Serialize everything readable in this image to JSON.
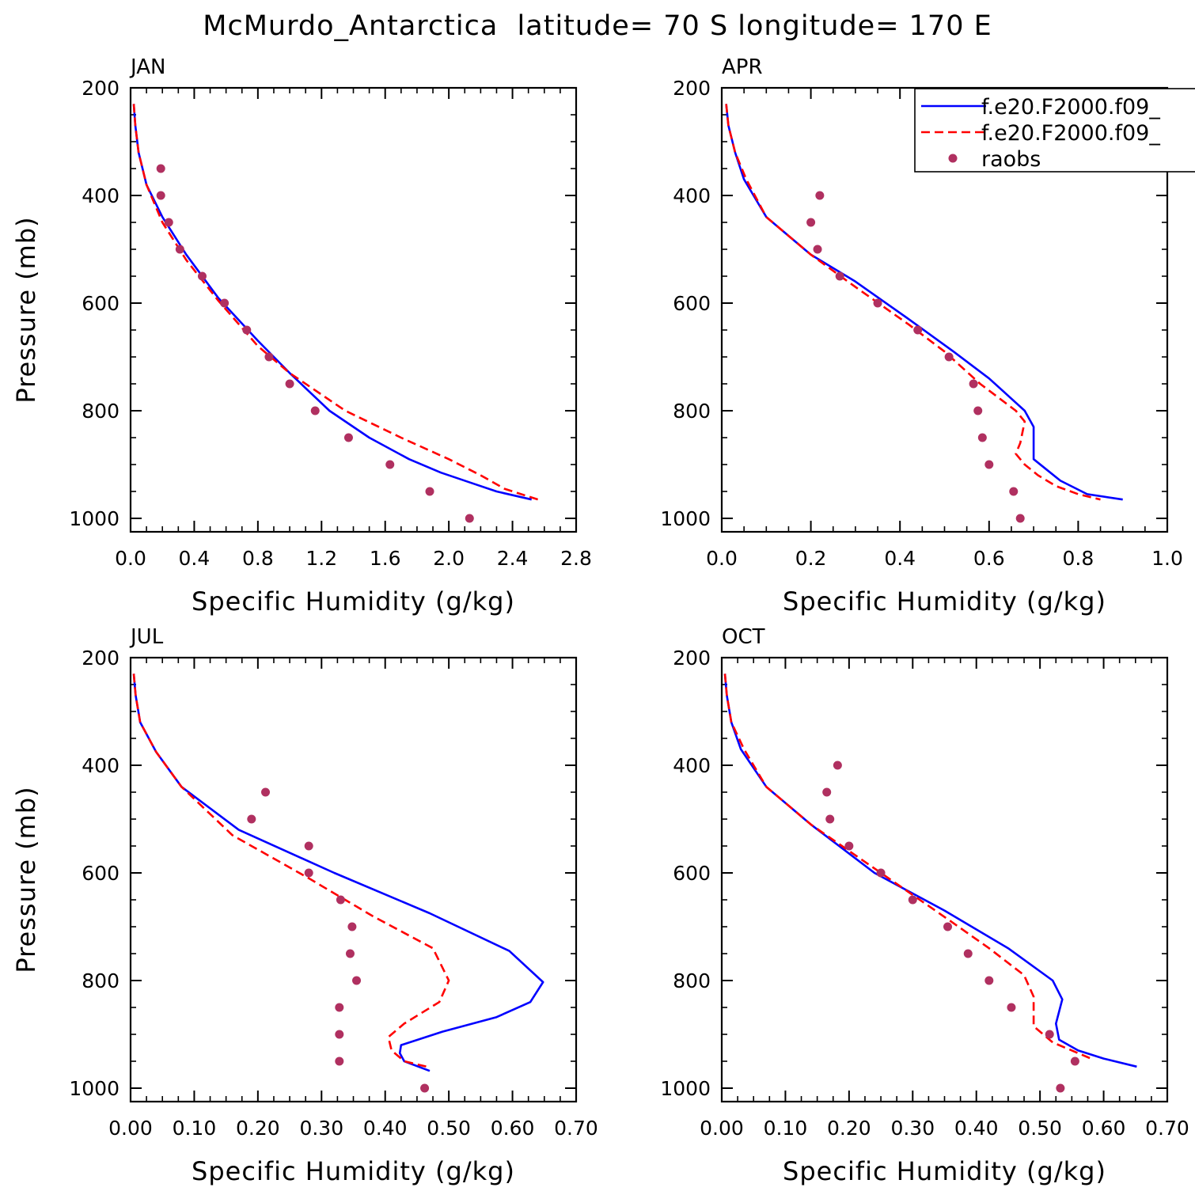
{
  "figure": {
    "title": "McMurdo_Antarctica  latitude= 70 S longitude= 170 E"
  },
  "legend": {
    "entries": [
      {
        "label": "f.e20.F2000.f09_",
        "color": "#0000ff",
        "style": "solid"
      },
      {
        "label": "f.e20.F2000.f09_",
        "color": "#ff0000",
        "style": "dashed"
      },
      {
        "label": "raobs",
        "color": "#b03060",
        "style": "marker"
      }
    ]
  },
  "chart_data": [
    {
      "type": "line",
      "panel_label": "JAN",
      "xlabel": "Specific Humidity (g/kg)",
      "ylabel": "Pressure (mb)",
      "xlim": [
        0,
        2.8
      ],
      "ylim": [
        1025,
        200
      ],
      "y_reversed": true,
      "xticks": [
        0,
        0.4,
        0.8,
        1.2,
        1.6,
        2.0,
        2.4,
        2.8
      ],
      "xtick_labels": [
        "0.0",
        "0.4",
        "0.8",
        "1.2",
        "1.6",
        "2.0",
        "2.4",
        "2.8"
      ],
      "yticks": [
        200,
        400,
        600,
        800,
        1000
      ],
      "ytick_labels": [
        "200",
        "400",
        "600",
        "800",
        "1000"
      ],
      "series": [
        {
          "name": "f.e20.F2000.f09_",
          "color": "#0000ff",
          "style": "solid",
          "x": [
            0.02,
            0.03,
            0.05,
            0.1,
            0.2,
            0.35,
            0.55,
            0.8,
            1.0,
            1.25,
            1.5,
            1.75,
            1.95,
            2.15,
            2.3,
            2.52
          ],
          "y": [
            230,
            270,
            320,
            380,
            440,
            510,
            590,
            670,
            730,
            800,
            850,
            890,
            915,
            935,
            950,
            965
          ]
        },
        {
          "name": "f.e20.F2000.f09_",
          "color": "#ff0000",
          "style": "dashed",
          "x": [
            0.02,
            0.03,
            0.05,
            0.1,
            0.2,
            0.35,
            0.55,
            0.8,
            1.0,
            1.35,
            1.7,
            2.0,
            2.2,
            2.35,
            2.56
          ],
          "y": [
            230,
            270,
            320,
            380,
            450,
            520,
            595,
            680,
            730,
            800,
            850,
            890,
            920,
            945,
            965
          ]
        },
        {
          "name": "raobs",
          "color": "#b03060",
          "style": "marker",
          "x": [
            0.19,
            0.19,
            0.24,
            0.31,
            0.45,
            0.59,
            0.73,
            0.87,
            1.0,
            1.16,
            1.37,
            1.63,
            1.88,
            2.13
          ],
          "y": [
            350,
            400,
            450,
            500,
            550,
            600,
            650,
            700,
            750,
            800,
            850,
            900,
            950,
            1000
          ]
        }
      ]
    },
    {
      "type": "line",
      "panel_label": "APR",
      "xlabel": "Specific Humidity (g/kg)",
      "ylabel": "",
      "xlim": [
        0,
        1.0
      ],
      "ylim": [
        1025,
        200
      ],
      "y_reversed": true,
      "xticks": [
        0,
        0.2,
        0.4,
        0.6,
        0.8,
        1.0
      ],
      "xtick_labels": [
        "0.0",
        "0.2",
        "0.4",
        "0.6",
        "0.8",
        "1.0"
      ],
      "yticks": [
        200,
        400,
        600,
        800,
        1000
      ],
      "ytick_labels": [
        "200",
        "400",
        "600",
        "800",
        "1000"
      ],
      "series": [
        {
          "name": "f.e20.F2000.f09_",
          "color": "#0000ff",
          "style": "solid",
          "x": [
            0.01,
            0.015,
            0.03,
            0.05,
            0.1,
            0.2,
            0.3,
            0.42,
            0.52,
            0.6,
            0.68,
            0.7,
            0.7,
            0.73,
            0.76,
            0.82,
            0.9
          ],
          "y": [
            230,
            270,
            320,
            370,
            440,
            510,
            560,
            630,
            690,
            740,
            800,
            830,
            890,
            910,
            930,
            955,
            965
          ]
        },
        {
          "name": "f.e20.F2000.f09_",
          "color": "#ff0000",
          "style": "dashed",
          "x": [
            0.01,
            0.015,
            0.03,
            0.055,
            0.1,
            0.2,
            0.3,
            0.42,
            0.5,
            0.58,
            0.66,
            0.68,
            0.67,
            0.66,
            0.68,
            0.71,
            0.75,
            0.8,
            0.85
          ],
          "y": [
            230,
            270,
            320,
            370,
            440,
            510,
            570,
            640,
            690,
            750,
            800,
            820,
            860,
            880,
            900,
            920,
            940,
            955,
            965
          ]
        },
        {
          "name": "raobs",
          "color": "#b03060",
          "style": "marker",
          "x": [
            0.22,
            0.2,
            0.215,
            0.265,
            0.35,
            0.44,
            0.51,
            0.565,
            0.575,
            0.585,
            0.6,
            0.655,
            0.67
          ],
          "y": [
            400,
            450,
            500,
            550,
            600,
            650,
            700,
            750,
            800,
            850,
            900,
            950,
            1000
          ]
        }
      ]
    },
    {
      "type": "line",
      "panel_label": "JUL",
      "xlabel": "Specific Humidity (g/kg)",
      "ylabel": "Pressure (mb)",
      "xlim": [
        0,
        0.7
      ],
      "ylim": [
        1025,
        200
      ],
      "y_reversed": true,
      "xticks": [
        0,
        0.1,
        0.2,
        0.3,
        0.4,
        0.5,
        0.6,
        0.7
      ],
      "xtick_labels": [
        "0.00",
        "0.10",
        "0.20",
        "0.30",
        "0.40",
        "0.50",
        "0.60",
        "0.70"
      ],
      "yticks": [
        200,
        400,
        600,
        800,
        1000
      ],
      "ytick_labels": [
        "200",
        "400",
        "600",
        "800",
        "1000"
      ],
      "series": [
        {
          "name": "f.e20.F2000.f09_",
          "color": "#0000ff",
          "style": "solid",
          "x": [
            0.005,
            0.008,
            0.015,
            0.04,
            0.08,
            0.17,
            0.32,
            0.47,
            0.595,
            0.648,
            0.628,
            0.575,
            0.49,
            0.425,
            0.423,
            0.43,
            0.47
          ],
          "y": [
            230,
            270,
            320,
            375,
            440,
            520,
            600,
            675,
            745,
            803,
            840,
            868,
            895,
            920,
            935,
            950,
            968
          ]
        },
        {
          "name": "f.e20.F2000.f09_",
          "color": "#ff0000",
          "style": "dashed",
          "x": [
            0.005,
            0.008,
            0.015,
            0.04,
            0.08,
            0.16,
            0.28,
            0.38,
            0.475,
            0.5,
            0.485,
            0.43,
            0.405,
            0.41,
            0.43,
            0.465
          ],
          "y": [
            230,
            270,
            320,
            375,
            440,
            530,
            610,
            680,
            740,
            800,
            840,
            880,
            905,
            930,
            950,
            960
          ]
        },
        {
          "name": "raobs",
          "color": "#b03060",
          "style": "marker",
          "x": [
            0.212,
            0.19,
            0.28,
            0.28,
            0.33,
            0.348,
            0.345,
            0.355,
            0.328,
            0.328,
            0.328,
            0.462
          ],
          "y": [
            450,
            500,
            550,
            600,
            650,
            700,
            750,
            800,
            850,
            900,
            950,
            1000
          ]
        }
      ]
    },
    {
      "type": "line",
      "panel_label": "OCT",
      "xlabel": "Specific Humidity (g/kg)",
      "ylabel": "",
      "xlim": [
        0,
        0.7
      ],
      "ylim": [
        1025,
        200
      ],
      "y_reversed": true,
      "xticks": [
        0,
        0.1,
        0.2,
        0.3,
        0.4,
        0.5,
        0.6,
        0.7
      ],
      "xtick_labels": [
        "0.00",
        "0.10",
        "0.20",
        "0.30",
        "0.40",
        "0.50",
        "0.60",
        "0.70"
      ],
      "yticks": [
        200,
        400,
        600,
        800,
        1000
      ],
      "ytick_labels": [
        "200",
        "400",
        "600",
        "800",
        "1000"
      ],
      "series": [
        {
          "name": "f.e20.F2000.f09_",
          "color": "#0000ff",
          "style": "solid",
          "x": [
            0.005,
            0.008,
            0.015,
            0.03,
            0.07,
            0.14,
            0.24,
            0.35,
            0.45,
            0.52,
            0.535,
            0.525,
            0.53,
            0.56,
            0.6,
            0.652
          ],
          "y": [
            230,
            270,
            320,
            370,
            440,
            510,
            600,
            670,
            740,
            800,
            835,
            880,
            910,
            930,
            945,
            960
          ]
        },
        {
          "name": "f.e20.F2000.f09_",
          "color": "#ff0000",
          "style": "dashed",
          "x": [
            0.005,
            0.008,
            0.015,
            0.035,
            0.07,
            0.14,
            0.25,
            0.36,
            0.42,
            0.475,
            0.49,
            0.49,
            0.52,
            0.56,
            0.58
          ],
          "y": [
            230,
            270,
            320,
            370,
            440,
            510,
            600,
            690,
            740,
            790,
            830,
            885,
            915,
            935,
            945
          ]
        },
        {
          "name": "raobs",
          "color": "#b03060",
          "style": "marker",
          "x": [
            0.182,
            0.165,
            0.17,
            0.2,
            0.25,
            0.3,
            0.355,
            0.387,
            0.42,
            0.455,
            0.515,
            0.555,
            0.532
          ],
          "y": [
            400,
            450,
            500,
            550,
            600,
            650,
            700,
            750,
            800,
            850,
            900,
            950,
            1000
          ]
        }
      ]
    }
  ]
}
